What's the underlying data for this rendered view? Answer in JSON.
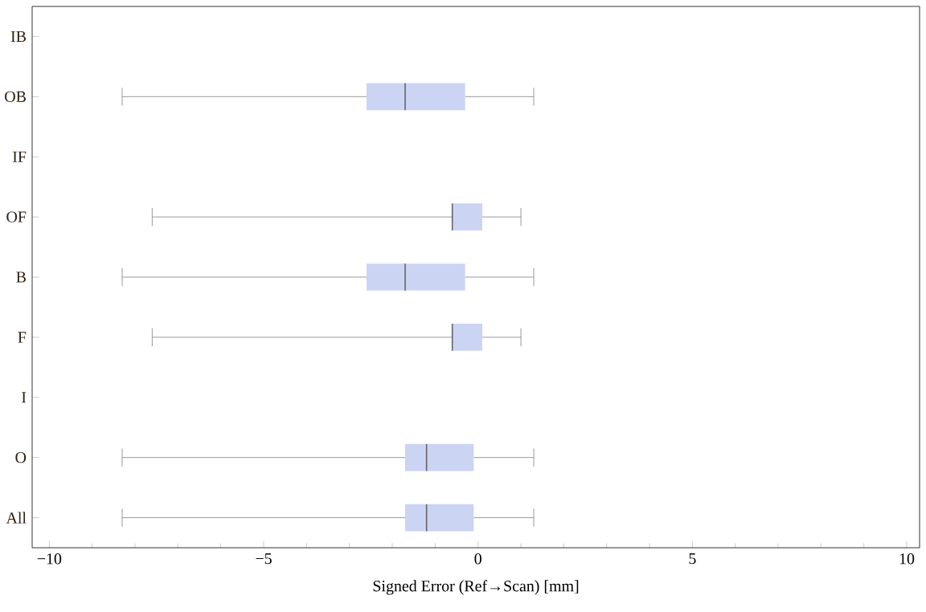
{
  "chart_data": {
    "type": "box",
    "orientation": "horizontal",
    "xlabel": "Signed Error (Ref→Scan) [mm]",
    "categories": [
      "IB",
      "OB",
      "IF",
      "OF",
      "B",
      "F",
      "I",
      "O",
      "All"
    ],
    "color": "#ccd4f4",
    "boxes": [
      null,
      {
        "low": -8.3,
        "q1": -2.6,
        "median": -1.7,
        "q3": -0.3,
        "high": 1.3
      },
      null,
      {
        "low": -7.6,
        "q1": -0.6,
        "median": -0.6,
        "q3": 0.1,
        "high": 1.0
      },
      {
        "low": -8.3,
        "q1": -2.6,
        "median": -1.7,
        "q3": -0.3,
        "high": 1.3
      },
      {
        "low": -7.6,
        "q1": -0.6,
        "median": -0.6,
        "q3": 0.1,
        "high": 1.0
      },
      null,
      {
        "low": -8.3,
        "q1": -1.7,
        "median": -1.2,
        "q3": -0.1,
        "high": 1.3
      },
      {
        "low": -8.3,
        "q1": -1.7,
        "median": -1.2,
        "q3": -0.1,
        "high": 1.3
      }
    ],
    "xlim": [
      -10.4,
      10.3
    ],
    "xticks": [
      {
        "value": -10,
        "label": "−10"
      },
      {
        "value": -5,
        "label": "−5"
      },
      0,
      5,
      10
    ]
  }
}
